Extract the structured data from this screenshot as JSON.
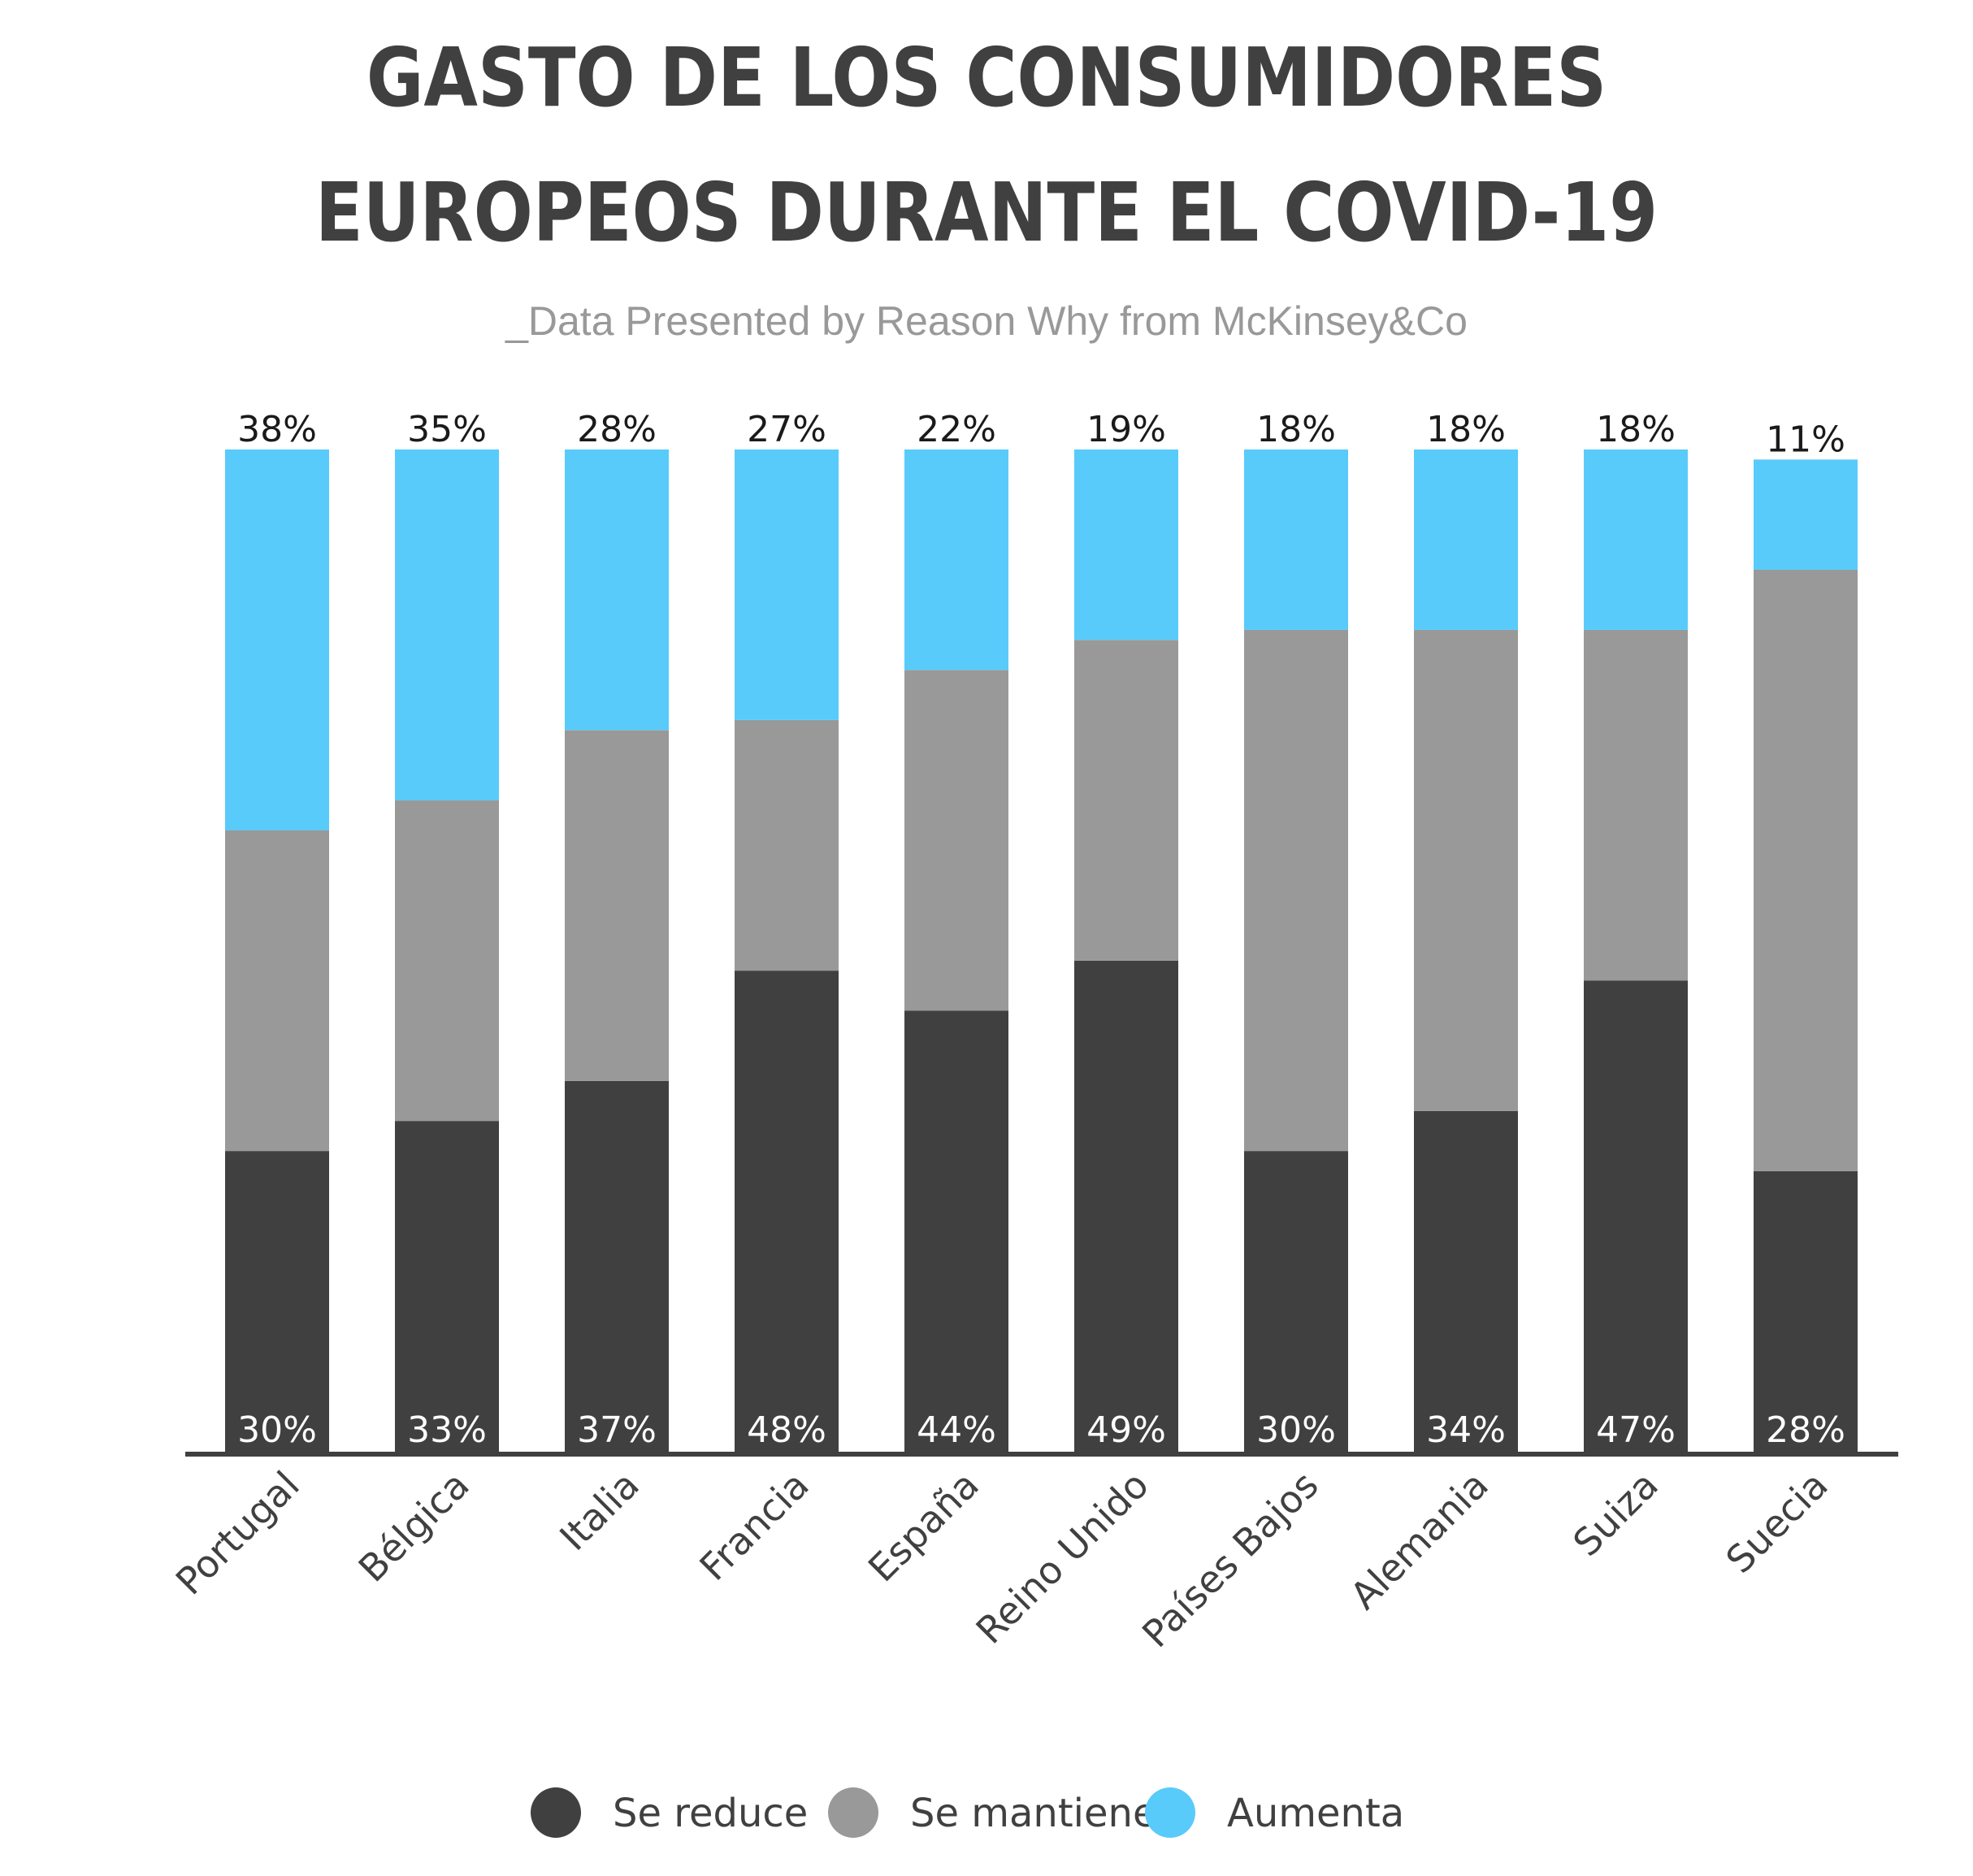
{
  "chart_data": {
    "type": "bar",
    "stacked": true,
    "title_lines": [
      "GASTO DE LOS CONSUMIDORES",
      "EUROPEOS DURANTE EL COVID-19"
    ],
    "subtitle": "_Data Presented by Reason Why from McKinsey&Co",
    "categories": [
      "Portugal",
      "Bélgica",
      "Italia",
      "Francia",
      "España",
      "Reino Unido",
      "Países Bajos",
      "Alemania",
      "Suiza",
      "Suecia"
    ],
    "series": [
      {
        "name": "Se reduce",
        "color": "#404040",
        "label_color": "#ffffff",
        "values": [
          30,
          33,
          37,
          48,
          44,
          49,
          30,
          34,
          47,
          28
        ]
      },
      {
        "name": "Se mantiene",
        "color": "#999999",
        "label_color": "#1a1a1a",
        "values": [
          32,
          32,
          35,
          25,
          34,
          32,
          52,
          48,
          35,
          60
        ]
      },
      {
        "name": "Aumenta",
        "color": "#58cbfa",
        "label_color": "#1a1a1a",
        "values": [
          38,
          35,
          28,
          27,
          22,
          19,
          18,
          18,
          18,
          11
        ]
      }
    ],
    "value_suffix": "%",
    "ylim": [
      0,
      100
    ],
    "legend_position": "bottom",
    "grid": false,
    "text_color": "#404040",
    "subtitle_color": "#999999"
  }
}
